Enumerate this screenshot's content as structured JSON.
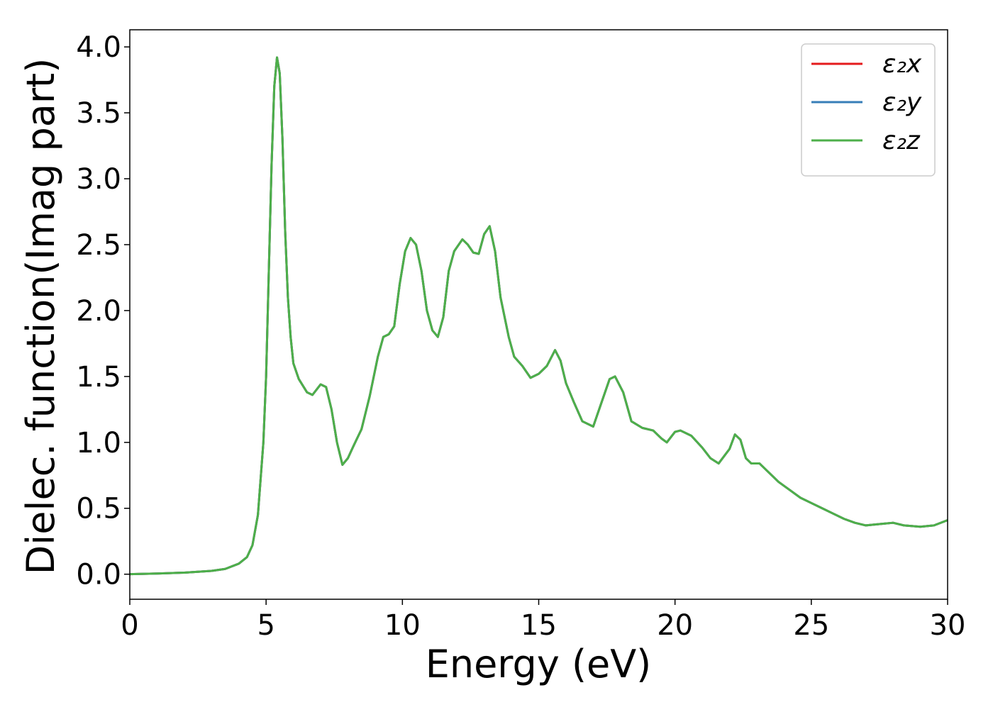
{
  "chart_data": {
    "type": "line",
    "xlabel": "Energy (eV)",
    "ylabel": "Dielec. function(Imag part)",
    "x": [
      0,
      1,
      2,
      3,
      3.5,
      4,
      4.3,
      4.5,
      4.7,
      4.9,
      5.0,
      5.1,
      5.2,
      5.3,
      5.4,
      5.5,
      5.6,
      5.7,
      5.8,
      5.9,
      6.0,
      6.2,
      6.5,
      6.7,
      7.0,
      7.2,
      7.4,
      7.6,
      7.8,
      8.0,
      8.2,
      8.5,
      8.8,
      9.1,
      9.3,
      9.5,
      9.7,
      9.9,
      10.1,
      10.3,
      10.5,
      10.7,
      10.9,
      11.1,
      11.3,
      11.5,
      11.7,
      11.9,
      12.2,
      12.4,
      12.6,
      12.8,
      13.0,
      13.2,
      13.4,
      13.6,
      13.9,
      14.1,
      14.4,
      14.7,
      15.0,
      15.3,
      15.6,
      15.8,
      16.0,
      16.3,
      16.6,
      17.0,
      17.3,
      17.6,
      17.8,
      18.1,
      18.4,
      18.8,
      19.2,
      19.5,
      19.7,
      20.0,
      20.2,
      20.6,
      21.0,
      21.3,
      21.6,
      22.0,
      22.2,
      22.4,
      22.6,
      22.8,
      23.1,
      23.4,
      23.8,
      24.2,
      24.6,
      25.0,
      25.4,
      25.8,
      26.2,
      26.6,
      27.0,
      27.5,
      28.0,
      28.4,
      29.0,
      29.5,
      30.0
    ],
    "series": [
      {
        "name": "ε₂x",
        "color": "#e41a1c",
        "values": [
          0.0,
          0.005,
          0.012,
          0.025,
          0.04,
          0.08,
          0.13,
          0.22,
          0.45,
          1.0,
          1.5,
          2.3,
          3.1,
          3.7,
          3.92,
          3.8,
          3.3,
          2.6,
          2.1,
          1.8,
          1.6,
          1.48,
          1.38,
          1.36,
          1.44,
          1.42,
          1.25,
          1.0,
          0.83,
          0.88,
          0.97,
          1.1,
          1.35,
          1.65,
          1.8,
          1.82,
          1.88,
          2.2,
          2.45,
          2.55,
          2.5,
          2.3,
          2.0,
          1.85,
          1.8,
          1.95,
          2.3,
          2.45,
          2.54,
          2.5,
          2.44,
          2.43,
          2.58,
          2.64,
          2.45,
          2.1,
          1.8,
          1.65,
          1.58,
          1.49,
          1.52,
          1.58,
          1.7,
          1.62,
          1.45,
          1.3,
          1.16,
          1.12,
          1.3,
          1.48,
          1.5,
          1.38,
          1.16,
          1.11,
          1.09,
          1.03,
          1.0,
          1.08,
          1.09,
          1.05,
          0.96,
          0.88,
          0.84,
          0.95,
          1.06,
          1.02,
          0.88,
          0.84,
          0.84,
          0.78,
          0.7,
          0.64,
          0.58,
          0.54,
          0.5,
          0.46,
          0.42,
          0.39,
          0.37,
          0.38,
          0.39,
          0.37,
          0.36,
          0.37,
          0.41
        ]
      },
      {
        "name": "ε₂y",
        "color": "#377eb8",
        "values": [
          0.0,
          0.005,
          0.012,
          0.025,
          0.04,
          0.08,
          0.13,
          0.22,
          0.45,
          1.0,
          1.5,
          2.3,
          3.1,
          3.7,
          3.92,
          3.8,
          3.3,
          2.6,
          2.1,
          1.8,
          1.6,
          1.48,
          1.38,
          1.36,
          1.44,
          1.42,
          1.25,
          1.0,
          0.83,
          0.88,
          0.97,
          1.1,
          1.35,
          1.65,
          1.8,
          1.82,
          1.88,
          2.2,
          2.45,
          2.55,
          2.5,
          2.3,
          2.0,
          1.85,
          1.8,
          1.95,
          2.3,
          2.45,
          2.54,
          2.5,
          2.44,
          2.43,
          2.58,
          2.64,
          2.45,
          2.1,
          1.8,
          1.65,
          1.58,
          1.49,
          1.52,
          1.58,
          1.7,
          1.62,
          1.45,
          1.3,
          1.16,
          1.12,
          1.3,
          1.48,
          1.5,
          1.38,
          1.16,
          1.11,
          1.09,
          1.03,
          1.0,
          1.08,
          1.09,
          1.05,
          0.96,
          0.88,
          0.84,
          0.95,
          1.06,
          1.02,
          0.88,
          0.84,
          0.84,
          0.78,
          0.7,
          0.64,
          0.58,
          0.54,
          0.5,
          0.46,
          0.42,
          0.39,
          0.37,
          0.38,
          0.39,
          0.37,
          0.36,
          0.37,
          0.41
        ]
      },
      {
        "name": "ε₂z",
        "color": "#4daf4a",
        "values": [
          0.0,
          0.005,
          0.012,
          0.025,
          0.04,
          0.08,
          0.13,
          0.22,
          0.45,
          1.0,
          1.5,
          2.3,
          3.1,
          3.7,
          3.92,
          3.8,
          3.3,
          2.6,
          2.1,
          1.8,
          1.6,
          1.48,
          1.38,
          1.36,
          1.44,
          1.42,
          1.25,
          1.0,
          0.83,
          0.88,
          0.97,
          1.1,
          1.35,
          1.65,
          1.8,
          1.82,
          1.88,
          2.2,
          2.45,
          2.55,
          2.5,
          2.3,
          2.0,
          1.85,
          1.8,
          1.95,
          2.3,
          2.45,
          2.54,
          2.5,
          2.44,
          2.43,
          2.58,
          2.64,
          2.45,
          2.1,
          1.8,
          1.65,
          1.58,
          1.49,
          1.52,
          1.58,
          1.7,
          1.62,
          1.45,
          1.3,
          1.16,
          1.12,
          1.3,
          1.48,
          1.5,
          1.38,
          1.16,
          1.11,
          1.09,
          1.03,
          1.0,
          1.08,
          1.09,
          1.05,
          0.96,
          0.88,
          0.84,
          0.95,
          1.06,
          1.02,
          0.88,
          0.84,
          0.84,
          0.78,
          0.7,
          0.64,
          0.58,
          0.54,
          0.5,
          0.46,
          0.42,
          0.39,
          0.37,
          0.38,
          0.39,
          0.37,
          0.36,
          0.37,
          0.41
        ]
      }
    ],
    "xlim": [
      0,
      30
    ],
    "xticks": [
      0,
      5,
      10,
      15,
      20,
      25,
      30
    ],
    "ylim": [
      -0.19,
      4.13
    ],
    "yticks": [
      {
        "value": 0,
        "label": "0.0"
      },
      0.5,
      {
        "value": 1,
        "label": "1.0"
      },
      1.5,
      {
        "value": 2,
        "label": "2.0"
      },
      2.5,
      {
        "value": 3,
        "label": "3.0"
      },
      3.5,
      {
        "value": 4,
        "label": "4.0"
      }
    ],
    "legend": "upper right"
  }
}
